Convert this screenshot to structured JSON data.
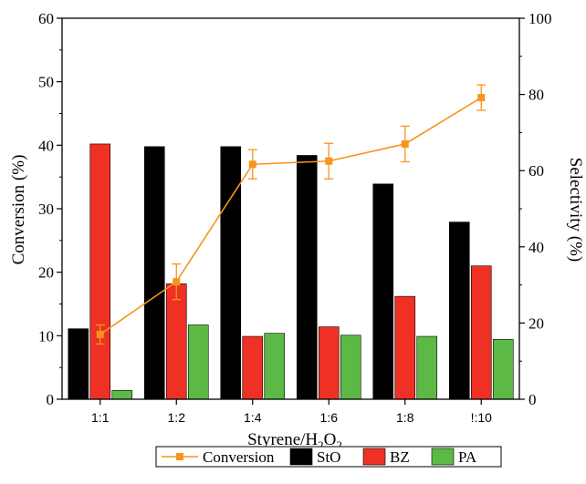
{
  "chart_data": {
    "type": "bar",
    "categories": [
      "1:1",
      "1:2",
      "1:4",
      "1:6",
      "1:8",
      "!:10"
    ],
    "xlabel": {
      "main": "Styrene/H",
      "sub1": "2",
      "mid": "O",
      "sub2": "2"
    },
    "ylabel_left": "Conversion (%)",
    "ylabel_right": "Selectivity (%)",
    "ylim_left": [
      0,
      60
    ],
    "ylim_right": [
      0,
      100
    ],
    "yticks_left": [
      "0",
      "10",
      "20",
      "30",
      "40",
      "50",
      "60"
    ],
    "yticks_right": [
      "0",
      "20",
      "40",
      "60",
      "80",
      "100"
    ],
    "grid": false,
    "legend_position": "bottom",
    "series": [
      {
        "name": "StO",
        "axis": "right",
        "color": "#000000",
        "values": [
          18.5,
          66.3,
          66.3,
          64,
          56.5,
          46.5
        ]
      },
      {
        "name": "BZ",
        "axis": "right",
        "color": "#ee3124",
        "values": [
          67,
          30.3,
          16.5,
          19,
          27,
          35
        ]
      },
      {
        "name": "PA",
        "axis": "right",
        "color": "#5cb946",
        "values": [
          2.3,
          19.5,
          17.3,
          16.8,
          16.5,
          15.7
        ]
      },
      {
        "name": "Conversion",
        "type": "line",
        "axis": "left",
        "color": "#f7941d",
        "values": [
          10.2,
          18.5,
          37,
          37.5,
          40.2,
          47.5
        ],
        "errors": [
          1.5,
          2.8,
          2.3,
          2.8,
          2.8,
          2
        ]
      }
    ],
    "legend": [
      "Conversion",
      "StO",
      "BZ",
      "PA"
    ]
  }
}
